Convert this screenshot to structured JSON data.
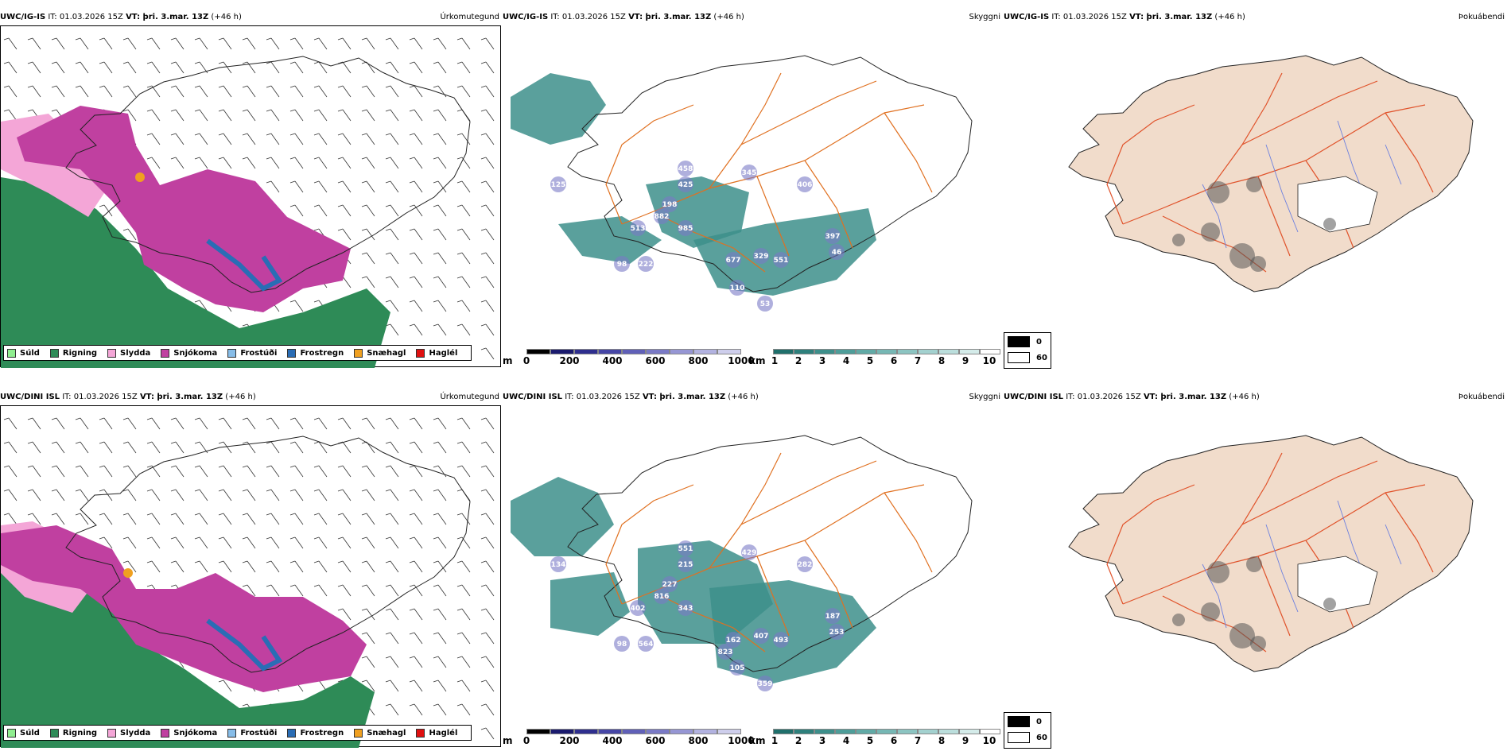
{
  "rows": [
    {
      "model": "UWC/IG-IS",
      "it": "IT: 01.03.2026 15Z",
      "vt": "VT: þri. 3.mar. 13Z",
      "lead": "(+46 h)",
      "titles": {
        "precip": "Úrkomutegund",
        "cloud": "Skyggni",
        "fog": "Þokuábendi"
      },
      "peaks": [
        "125",
        "458",
        "345",
        "425",
        "198",
        "406",
        "882",
        "985",
        "513",
        "397",
        "677",
        "329",
        "551",
        "46",
        "98",
        "222",
        "110",
        "53"
      ]
    },
    {
      "model": "UWC/DINI ISL",
      "it": "IT: 01.03.2026 15Z",
      "vt": "VT: þri. 3.mar. 13Z",
      "lead": "(+46 h)",
      "titles": {
        "precip": "Úrkomutegund",
        "cloud": "Skyggni",
        "fog": "Þokuábendi"
      },
      "peaks": [
        "134",
        "551",
        "429",
        "215",
        "227",
        "282",
        "816",
        "343",
        "402",
        "187",
        "162",
        "407",
        "493",
        "253",
        "98",
        "564",
        "105",
        "359",
        "823"
      ]
    }
  ],
  "ptype_legend": [
    {
      "label": "Súld",
      "color": "#90ee90"
    },
    {
      "label": "Rigning",
      "color": "#2e8b57"
    },
    {
      "label": "Slydda",
      "color": "#f4a6d7"
    },
    {
      "label": "Snjókoma",
      "color": "#c040a0"
    },
    {
      "label": "Frostúði",
      "color": "#87bde8"
    },
    {
      "label": "Frostregn",
      "color": "#2a6db5"
    },
    {
      "label": "Snæhagl",
      "color": "#f0a020"
    },
    {
      "label": "Haglél",
      "color": "#e01010"
    }
  ],
  "height_bar": {
    "unit": "m",
    "ticks": [
      "0",
      "200",
      "400",
      "600",
      "800",
      "1000"
    ],
    "colors": [
      "#000000",
      "#1a1a6e",
      "#2e2e8e",
      "#4646a6",
      "#6060b8",
      "#7a7ac6",
      "#9696d4",
      "#b2b2e0",
      "#ceceec"
    ]
  },
  "vis_bar": {
    "unit": "km",
    "ticks": [
      "1",
      "2",
      "3",
      "4",
      "5",
      "6",
      "7",
      "8",
      "9",
      "10"
    ],
    "colors": [
      "#1f6f6b",
      "#2e807c",
      "#3d8f8b",
      "#4e9d99",
      "#61aaa6",
      "#76b7b4",
      "#8cc4c1",
      "#a3d1cf",
      "#bbdedc",
      "#d4ebe9",
      "#ffffff"
    ]
  },
  "fog_legend": [
    {
      "label": "0",
      "color": "#000000"
    },
    {
      "label": "60",
      "color": "#ffffff"
    }
  ],
  "colors": {
    "road": "#e07020",
    "coast": "#222222",
    "land_fog": "#f1dccb",
    "fog_road": "#e0522a",
    "river": "#6b7fe0"
  }
}
